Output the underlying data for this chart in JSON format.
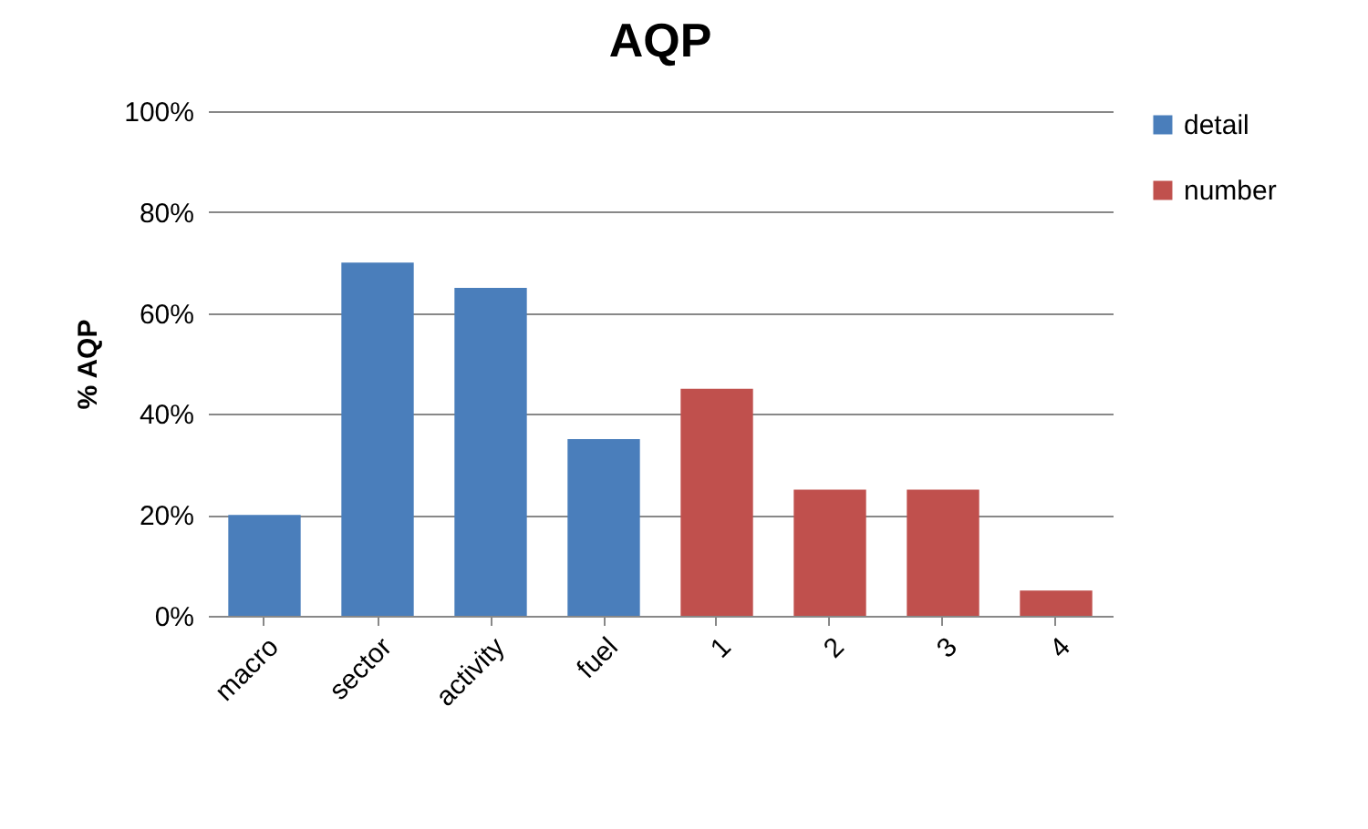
{
  "chart_data": {
    "type": "bar",
    "title": "AQP",
    "ylabel": "% AQP",
    "categories": [
      "macro",
      "sector",
      "activity",
      "fuel",
      "1",
      "2",
      "3",
      "4"
    ],
    "series": [
      {
        "name": "detail",
        "color": "#4a7ebb",
        "values": [
          20,
          70,
          65,
          35,
          null,
          null,
          null,
          null
        ]
      },
      {
        "name": "number",
        "color": "#c0504d",
        "values": [
          null,
          null,
          null,
          null,
          45,
          25,
          25,
          5
        ]
      }
    ],
    "ylim": [
      0,
      100
    ],
    "yticks": [
      {
        "value": 0,
        "label": "0%"
      },
      {
        "value": 20,
        "label": "20%"
      },
      {
        "value": 40,
        "label": "40%"
      },
      {
        "value": 60,
        "label": "60%"
      },
      {
        "value": 80,
        "label": "80%"
      },
      {
        "value": 100,
        "label": "100%"
      }
    ],
    "grid": "y",
    "legend": "right"
  }
}
